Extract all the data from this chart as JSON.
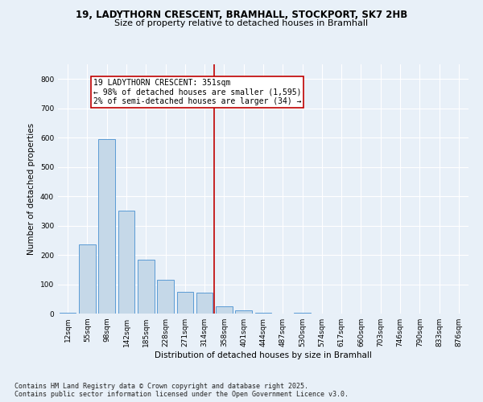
{
  "title_line1": "19, LADYTHORN CRESCENT, BRAMHALL, STOCKPORT, SK7 2HB",
  "title_line2": "Size of property relative to detached houses in Bramhall",
  "xlabel": "Distribution of detached houses by size in Bramhall",
  "ylabel": "Number of detached properties",
  "bar_labels": [
    "12sqm",
    "55sqm",
    "98sqm",
    "142sqm",
    "185sqm",
    "228sqm",
    "271sqm",
    "314sqm",
    "358sqm",
    "401sqm",
    "444sqm",
    "487sqm",
    "530sqm",
    "574sqm",
    "617sqm",
    "660sqm",
    "703sqm",
    "746sqm",
    "790sqm",
    "833sqm",
    "876sqm"
  ],
  "bar_values": [
    3,
    235,
    595,
    350,
    185,
    115,
    75,
    70,
    25,
    10,
    4,
    0,
    3,
    0,
    0,
    0,
    0,
    0,
    0,
    0,
    0
  ],
  "bar_color": "#c5d8e8",
  "bar_edge_color": "#5b9bd5",
  "vline_x": 7.5,
  "vline_color": "#c00000",
  "annotation_text": "19 LADYTHORN CRESCENT: 351sqm\n← 98% of detached houses are smaller (1,595)\n2% of semi-detached houses are larger (34) →",
  "annotation_box_color": "#c00000",
  "annotation_bg": "#ffffff",
  "ylim": [
    0,
    850
  ],
  "yticks": [
    0,
    100,
    200,
    300,
    400,
    500,
    600,
    700,
    800
  ],
  "footer_line1": "Contains HM Land Registry data © Crown copyright and database right 2025.",
  "footer_line2": "Contains public sector information licensed under the Open Government Licence v3.0.",
  "bg_color": "#e8f0f8",
  "plot_bg_color": "#e8f0f8",
  "grid_color": "#ffffff",
  "title_fontsize": 8.5,
  "subtitle_fontsize": 8,
  "axis_label_fontsize": 7.5,
  "tick_fontsize": 6.5,
  "footer_fontsize": 6,
  "annotation_fontsize": 7
}
